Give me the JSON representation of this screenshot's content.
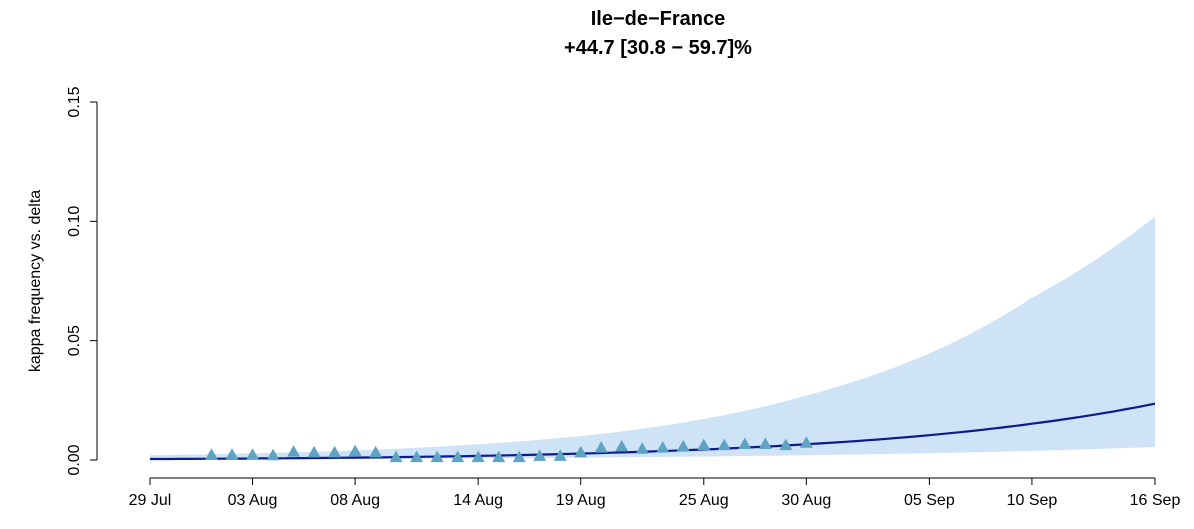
{
  "chart_data": {
    "type": "line",
    "title": "Ile−de−France",
    "subtitle": "+44.7 [30.8 − 59.7]%",
    "xlabel": "",
    "ylabel": "kappa frequency vs. delta",
    "x_range": [
      "2021-07-29",
      "2021-09-16"
    ],
    "ylim": [
      0,
      0.15
    ],
    "y_ticks": [
      "0.00",
      "0.05",
      "0.10",
      "0.15"
    ],
    "x_ticks": [
      {
        "date": "2021-07-29",
        "label": "29 Jul"
      },
      {
        "date": "2021-08-03",
        "label": "03 Aug"
      },
      {
        "date": "2021-08-08",
        "label": "08 Aug"
      },
      {
        "date": "2021-08-14",
        "label": "14 Aug"
      },
      {
        "date": "2021-08-19",
        "label": "19 Aug"
      },
      {
        "date": "2021-08-25",
        "label": "25 Aug"
      },
      {
        "date": "2021-08-30",
        "label": "30 Aug"
      },
      {
        "date": "2021-09-05",
        "label": "05 Sep"
      },
      {
        "date": "2021-09-10",
        "label": "10 Sep"
      },
      {
        "date": "2021-09-16",
        "label": "16 Sep"
      }
    ],
    "grid": false,
    "colors": {
      "fit": "#0d1b8c",
      "band": "#cfe3f7",
      "points": "#5ea3c4"
    },
    "fit": {
      "x": [
        "2021-07-29",
        "2021-08-08",
        "2021-08-19",
        "2021-08-30",
        "2021-09-10",
        "2021-09-16"
      ],
      "y": [
        0.0004,
        0.001,
        0.0027,
        0.0066,
        0.0152,
        0.0236
      ]
    },
    "band": {
      "x": [
        "2021-07-29",
        "2021-08-08",
        "2021-08-19",
        "2021-08-30",
        "2021-09-10",
        "2021-09-16"
      ],
      "lower": [
        0.0001,
        0.0004,
        0.001,
        0.002,
        0.0038,
        0.0055
      ],
      "upper": [
        0.002,
        0.004,
        0.01,
        0.027,
        0.068,
        0.102
      ]
    },
    "points": {
      "x": [
        "2021-08-01",
        "2021-08-02",
        "2021-08-03",
        "2021-08-04",
        "2021-08-05",
        "2021-08-06",
        "2021-08-07",
        "2021-08-08",
        "2021-08-09",
        "2021-08-10",
        "2021-08-11",
        "2021-08-12",
        "2021-08-13",
        "2021-08-14",
        "2021-08-15",
        "2021-08-16",
        "2021-08-17",
        "2021-08-18",
        "2021-08-19",
        "2021-08-20",
        "2021-08-21",
        "2021-08-22",
        "2021-08-23",
        "2021-08-24",
        "2021-08-25",
        "2021-08-26",
        "2021-08-27",
        "2021-08-28",
        "2021-08-29",
        "2021-08-30"
      ],
      "y": [
        0.002,
        0.002,
        0.002,
        0.0018,
        0.0033,
        0.003,
        0.003,
        0.0035,
        0.003,
        0.001,
        0.001,
        0.001,
        0.001,
        0.001,
        0.001,
        0.001,
        0.0015,
        0.0015,
        0.003,
        0.005,
        0.0055,
        0.0045,
        0.005,
        0.0055,
        0.006,
        0.006,
        0.0065,
        0.0065,
        0.006,
        0.007
      ]
    }
  }
}
